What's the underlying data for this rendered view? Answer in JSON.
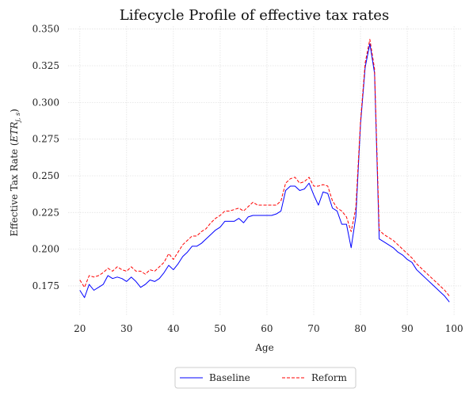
{
  "chart_data": {
    "type": "line",
    "title": "Lifecycle Profile of effective tax rates",
    "xlabel": "Age",
    "ylabel": "Effective Tax Rate ($E\\bar{T}R_{j,s}$)",
    "ylabel_parts": [
      "Effective Tax Rate (",
      "ET",
      "̄",
      "R",
      "j, s",
      ")"
    ],
    "xlim": [
      17.5,
      101.5
    ],
    "ylim": [
      0.155,
      0.352
    ],
    "xticks": [
      20,
      30,
      40,
      50,
      60,
      70,
      80,
      90,
      100
    ],
    "yticks": [
      0.175,
      0.2,
      0.225,
      0.25,
      0.275,
      0.3,
      0.325,
      0.35
    ],
    "ytick_labels": [
      "0.175",
      "0.200",
      "0.225",
      "0.250",
      "0.275",
      "0.300",
      "0.325",
      "0.350"
    ],
    "grid": true,
    "legend_position": "bottom-center-outside",
    "x": [
      20,
      21,
      22,
      23,
      24,
      25,
      26,
      27,
      28,
      29,
      30,
      31,
      32,
      33,
      34,
      35,
      36,
      37,
      38,
      39,
      40,
      41,
      42,
      43,
      44,
      45,
      46,
      47,
      48,
      49,
      50,
      51,
      52,
      53,
      54,
      55,
      56,
      57,
      58,
      59,
      60,
      61,
      62,
      63,
      64,
      65,
      66,
      67,
      68,
      69,
      70,
      71,
      72,
      73,
      74,
      75,
      76,
      77,
      78,
      79,
      80,
      81,
      82,
      83,
      84,
      85,
      86,
      87,
      88,
      89,
      90,
      91,
      92,
      93,
      94,
      95,
      96,
      97,
      98,
      99
    ],
    "series": [
      {
        "name": "Baseline",
        "color": "#0000ff",
        "dash": "solid",
        "values": [
          0.172,
          0.167,
          0.176,
          0.172,
          0.174,
          0.176,
          0.182,
          0.18,
          0.181,
          0.18,
          0.178,
          0.181,
          0.178,
          0.174,
          0.176,
          0.179,
          0.178,
          0.18,
          0.184,
          0.189,
          0.186,
          0.19,
          0.195,
          0.198,
          0.202,
          0.202,
          0.204,
          0.207,
          0.21,
          0.213,
          0.215,
          0.219,
          0.219,
          0.219,
          0.221,
          0.218,
          0.222,
          0.223,
          0.223,
          0.223,
          0.223,
          0.223,
          0.224,
          0.226,
          0.24,
          0.243,
          0.243,
          0.24,
          0.241,
          0.245,
          0.237,
          0.23,
          0.239,
          0.238,
          0.228,
          0.226,
          0.217,
          0.217,
          0.201,
          0.222,
          0.285,
          0.324,
          0.34,
          0.32,
          0.207,
          0.205,
          0.203,
          0.201,
          0.198,
          0.196,
          0.193,
          0.191,
          0.186,
          0.183,
          0.18,
          0.177,
          0.174,
          0.171,
          0.168,
          0.164
        ]
      },
      {
        "name": "Reform",
        "color": "#ff0000",
        "dash": "dashed",
        "values": [
          0.179,
          0.174,
          0.182,
          0.181,
          0.182,
          0.184,
          0.187,
          0.185,
          0.188,
          0.186,
          0.185,
          0.188,
          0.185,
          0.185,
          0.183,
          0.186,
          0.185,
          0.188,
          0.191,
          0.197,
          0.193,
          0.198,
          0.203,
          0.206,
          0.209,
          0.209,
          0.212,
          0.214,
          0.218,
          0.221,
          0.223,
          0.226,
          0.226,
          0.227,
          0.228,
          0.226,
          0.229,
          0.232,
          0.23,
          0.23,
          0.23,
          0.23,
          0.23,
          0.233,
          0.245,
          0.248,
          0.249,
          0.245,
          0.246,
          0.249,
          0.243,
          0.243,
          0.244,
          0.243,
          0.233,
          0.228,
          0.226,
          0.222,
          0.212,
          0.228,
          0.287,
          0.327,
          0.343,
          0.323,
          0.213,
          0.21,
          0.208,
          0.206,
          0.203,
          0.2,
          0.197,
          0.194,
          0.19,
          0.187,
          0.184,
          0.181,
          0.178,
          0.175,
          0.172,
          0.168
        ]
      }
    ]
  }
}
